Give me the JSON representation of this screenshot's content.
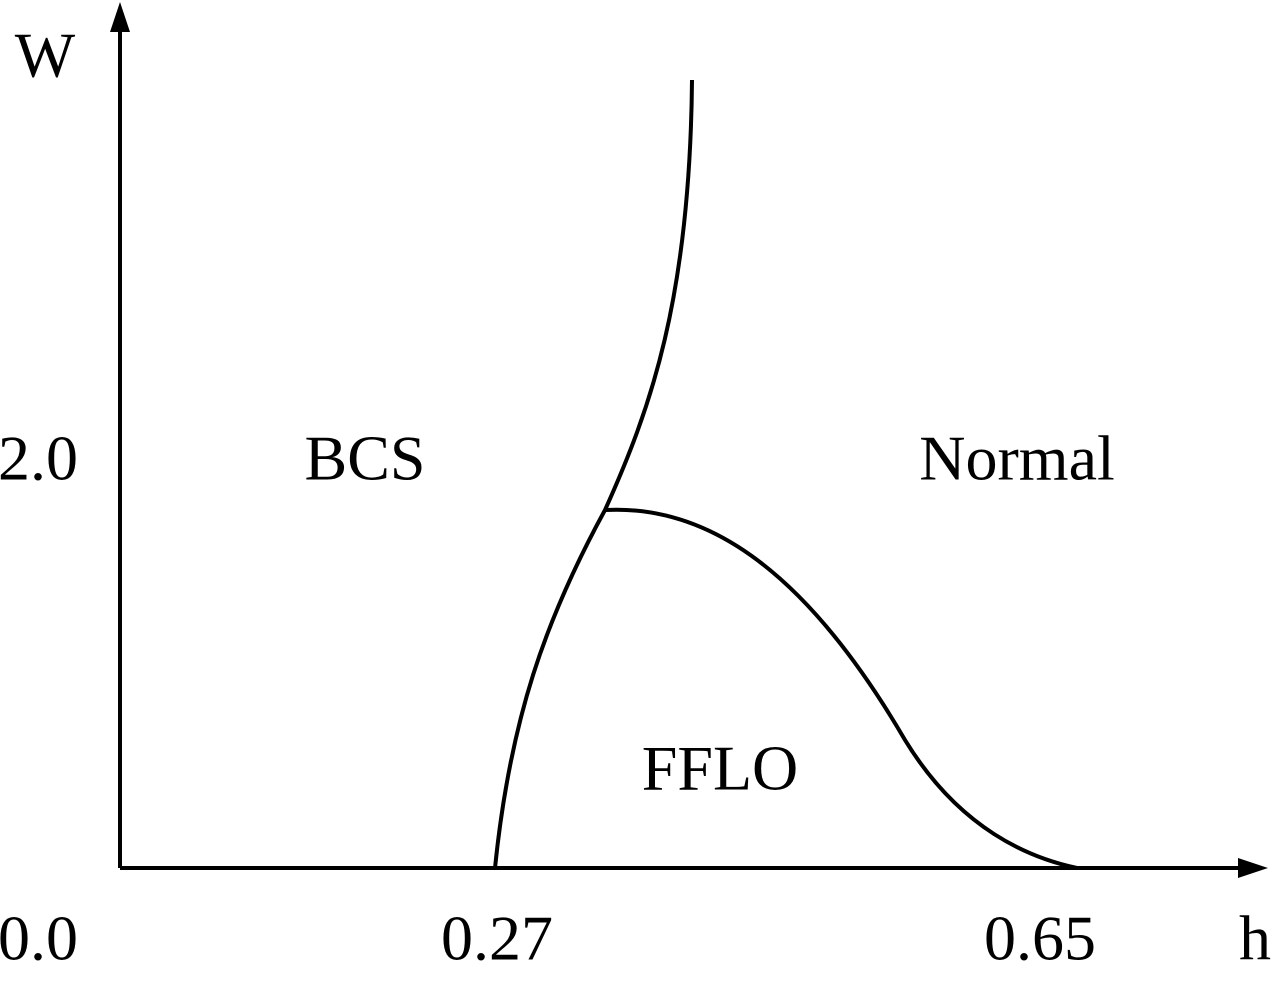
{
  "axes": {
    "x_label": "h",
    "y_label": "W"
  },
  "ticks": {
    "origin": "0.0",
    "x": [
      "0.27",
      "0.65"
    ],
    "y": [
      "2.0"
    ]
  },
  "regions": {
    "bcs": "BCS",
    "normal": "Normal",
    "fflo": "FFLO"
  }
}
